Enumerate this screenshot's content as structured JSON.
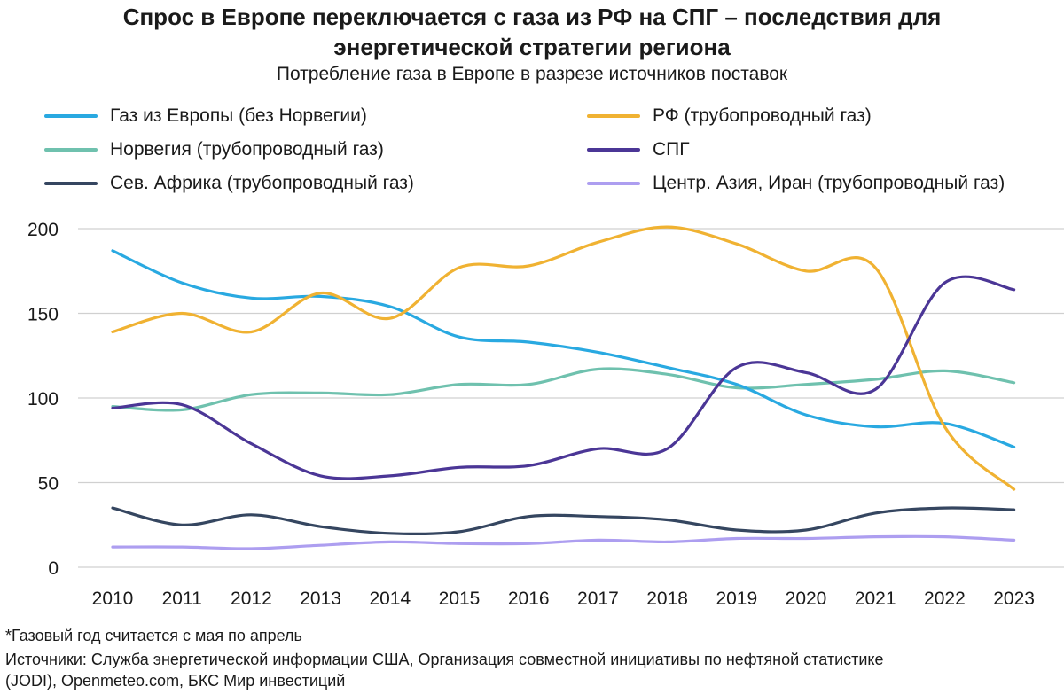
{
  "header": {
    "title_line1": "Спрос в Европе переключается с газа из РФ на СПГ – последствия для",
    "title_line2": "энергетической стратегии региона",
    "subtitle": "Потребление газа в Европе в разрезе источников поставок"
  },
  "footer": {
    "note": "*Газовый год считается с мая по апрель",
    "sources_line1": "Источники: Служба энергетической информации США, Организация совместной инициативы по нефтяной статистике",
    "sources_line2": "(JODI), Openmeteo.com, БКС Мир инвестиций"
  },
  "chart_data": {
    "type": "line",
    "title": "Потребление газа в Европе в разрезе источников поставок",
    "x": [
      "2010",
      "2011",
      "2012",
      "2013",
      "2014",
      "2015",
      "2016",
      "2017",
      "2018",
      "2019",
      "2020",
      "2021",
      "2022",
      "2023"
    ],
    "ylim": [
      0,
      200
    ],
    "yticks": [
      0,
      50,
      100,
      150,
      200
    ],
    "grid": "horizontal",
    "legend_position": "top",
    "series": [
      {
        "name": "Газ из Европы (без Норвегии)",
        "color": "#29a9e1",
        "values": [
          187,
          168,
          159,
          160,
          154,
          136,
          133,
          127,
          118,
          108,
          90,
          83,
          85,
          71
        ]
      },
      {
        "name": "РФ (трубопроводный газ)",
        "color": "#f0b232",
        "values": [
          139,
          150,
          139,
          162,
          147,
          177,
          178,
          192,
          201,
          191,
          175,
          177,
          83,
          46
        ]
      },
      {
        "name": "Норвегия (трубопроводный газ)",
        "color": "#6fc1ae",
        "values": [
          95,
          93,
          102,
          103,
          102,
          108,
          108,
          117,
          114,
          106,
          108,
          111,
          116,
          109
        ]
      },
      {
        "name": "СПГ",
        "color": "#4b3696",
        "values": [
          94,
          96,
          73,
          54,
          54,
          59,
          60,
          70,
          70,
          118,
          115,
          105,
          168,
          164
        ]
      },
      {
        "name": "Сев. Африка (трубопроводный газ)",
        "color": "#354660",
        "values": [
          35,
          25,
          31,
          24,
          20,
          21,
          30,
          30,
          28,
          22,
          22,
          32,
          35,
          34
        ]
      },
      {
        "name": "Центр. Азия, Иран (трубопроводный газ)",
        "color": "#ad9ef0",
        "values": [
          12,
          12,
          11,
          13,
          15,
          14,
          14,
          16,
          15,
          17,
          17,
          18,
          18,
          16
        ]
      }
    ]
  }
}
